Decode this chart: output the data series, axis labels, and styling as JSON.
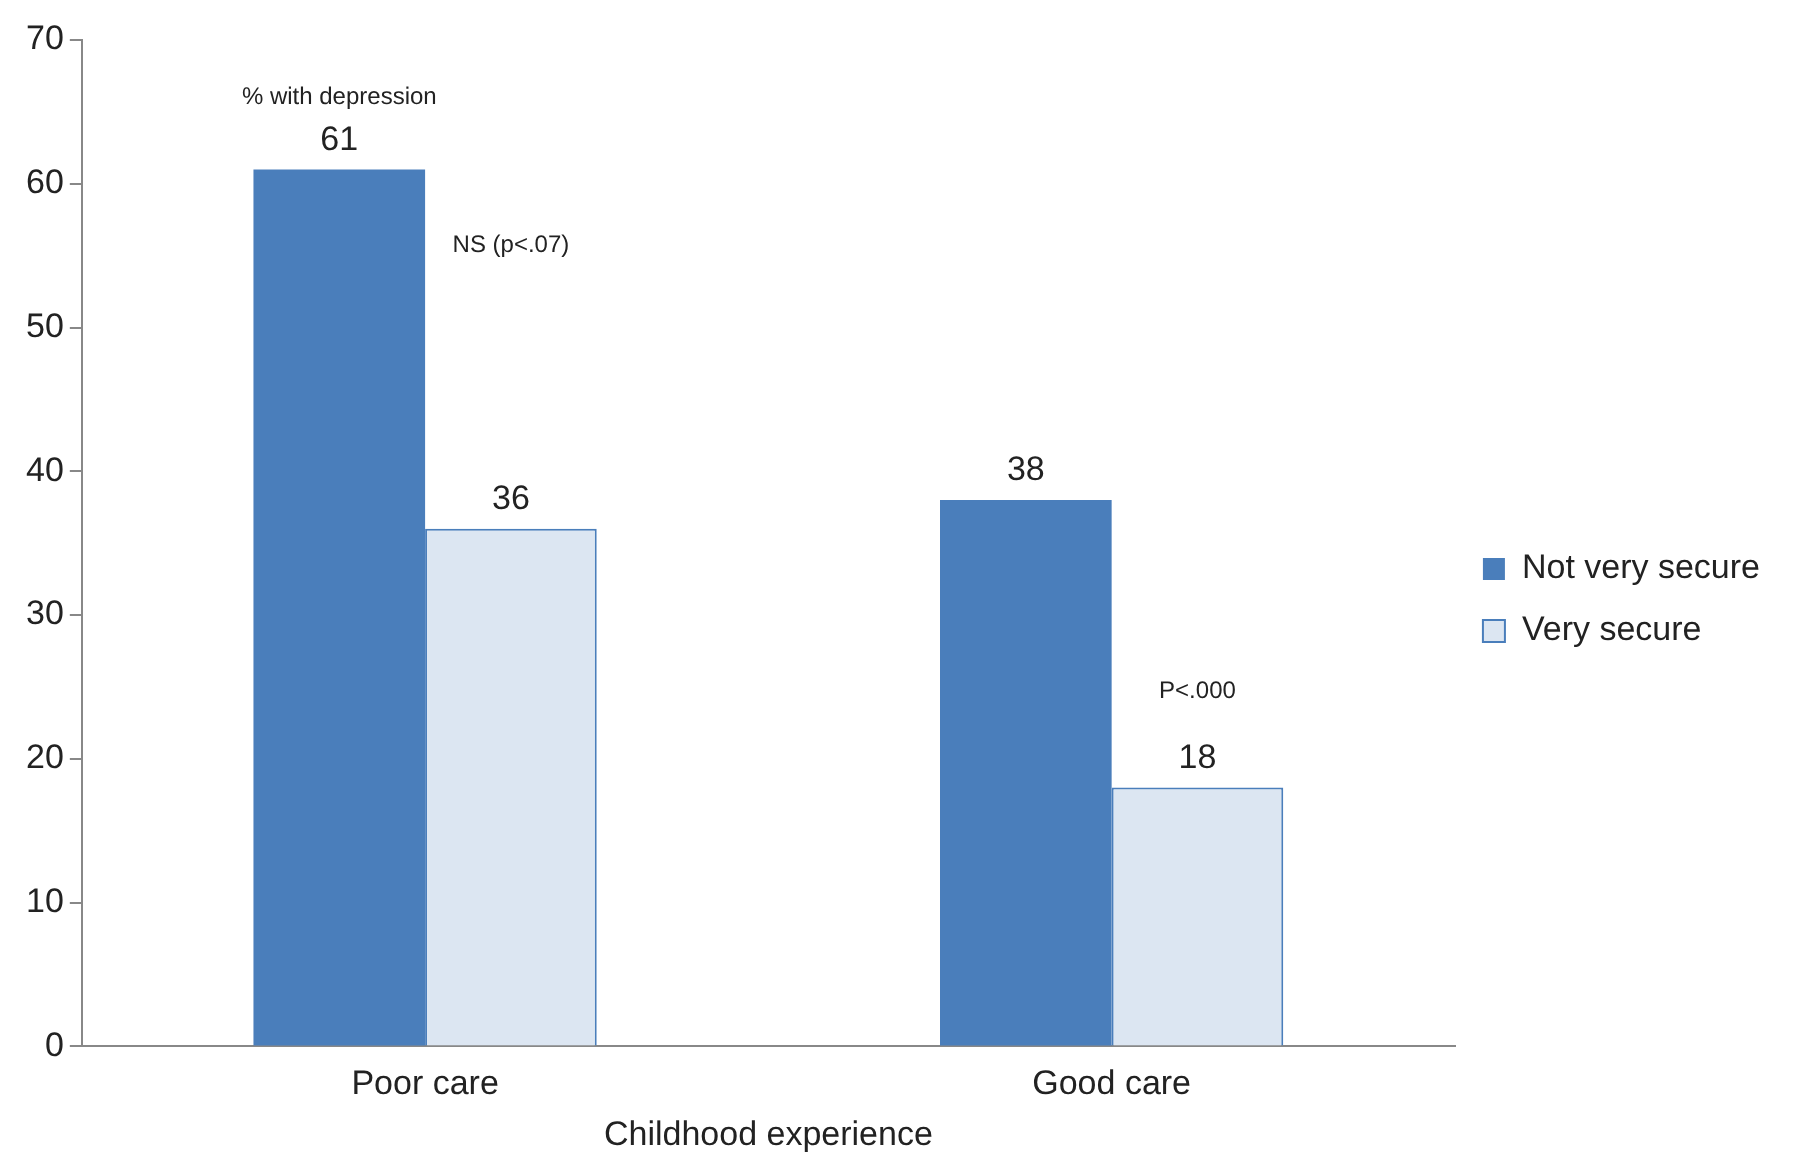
{
  "chart_data": {
    "type": "bar",
    "xlabel": "Childhood experience",
    "categories": [
      "Poor care",
      "Good care"
    ],
    "series": [
      {
        "name": "Not very secure",
        "color": "#4a7ebb",
        "values": [
          61,
          38
        ]
      },
      {
        "name": "Very secure",
        "color": "#dce6f2",
        "values": [
          36,
          18
        ]
      }
    ],
    "ylim": [
      0,
      70
    ],
    "yticks": [
      0,
      10,
      20,
      30,
      40,
      50,
      60,
      70
    ],
    "grid": false,
    "legend": "right",
    "data_labels": true,
    "annotations": [
      "% with depression",
      "NS (p<.07)",
      "P<.000"
    ]
  }
}
